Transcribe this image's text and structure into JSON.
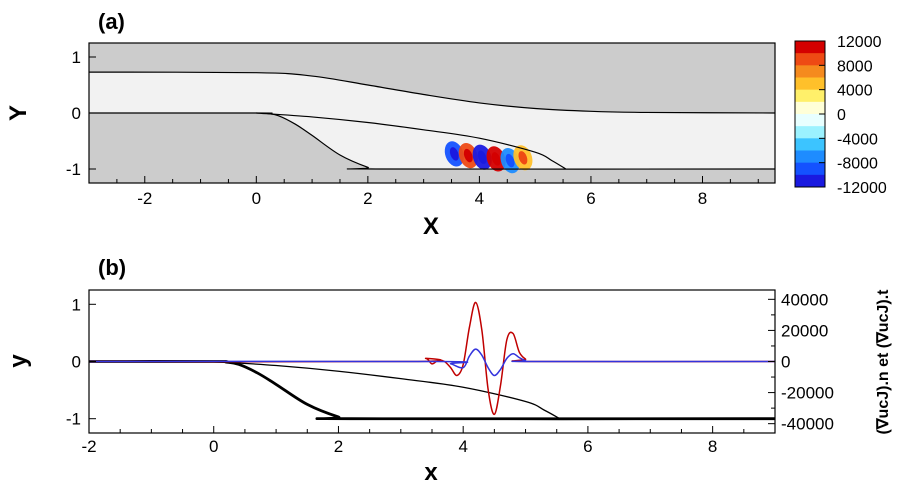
{
  "chart_data": [
    {
      "type": "heatmap",
      "panel_label": "(a)",
      "xlabel": "X",
      "ylabel": "Y",
      "xlim": [
        -3,
        9.3
      ],
      "ylim": [
        -1.25,
        1.25
      ],
      "xticks": [
        -2,
        0,
        2,
        4,
        6,
        8
      ],
      "yticks": [
        1,
        0,
        -1
      ],
      "colorbar": {
        "ticks": [
          12000,
          8000,
          4000,
          0,
          -4000,
          -8000,
          -12000
        ],
        "range": [
          -12000,
          12000
        ],
        "colors": [
          "#d40000",
          "#ee4a14",
          "#f58a1e",
          "#ffc02a",
          "#fff06a",
          "#ffffd8",
          "#e8ffff",
          "#9cf2ff",
          "#3cc4ff",
          "#1e8cff",
          "#1452ff",
          "#1a1ae0"
        ]
      },
      "upper_wall": [
        [
          -3,
          0.73
        ],
        [
          0,
          0.72
        ],
        [
          1,
          0.66
        ],
        [
          2,
          0.5
        ],
        [
          3,
          0.33
        ],
        [
          4,
          0.18
        ],
        [
          5,
          0.08
        ],
        [
          6,
          0.03
        ],
        [
          7,
          0.01
        ],
        [
          9.3,
          0.0
        ]
      ],
      "bump_wall": [
        [
          -3,
          0
        ],
        [
          0,
          0
        ],
        [
          0.2,
          -0.01
        ],
        [
          0.4,
          -0.05
        ],
        [
          0.7,
          -0.2
        ],
        [
          1,
          -0.4
        ],
        [
          1.5,
          -0.75
        ],
        [
          2,
          -0.97
        ],
        [
          2.2,
          -1.0
        ],
        [
          9.3,
          -1.0
        ]
      ],
      "shear_line": [
        [
          0,
          0
        ],
        [
          1,
          -0.07
        ],
        [
          2,
          -0.17
        ],
        [
          3,
          -0.3
        ],
        [
          4,
          -0.45
        ],
        [
          5,
          -0.7
        ],
        [
          5.3,
          -0.85
        ],
        [
          5.55,
          -1.0
        ]
      ],
      "blobs": [
        {
          "x": 3.55,
          "y": -0.73,
          "v": -9000
        },
        {
          "x": 3.8,
          "y": -0.76,
          "v": 10000
        },
        {
          "x": 4.05,
          "y": -0.79,
          "v": -12000
        },
        {
          "x": 4.3,
          "y": -0.82,
          "v": 11000
        },
        {
          "x": 4.55,
          "y": -0.85,
          "v": -6000
        },
        {
          "x": 4.78,
          "y": -0.8,
          "v": 6000
        }
      ]
    },
    {
      "type": "line",
      "panel_label": "(b)",
      "xlabel": "x",
      "ylabel": "y",
      "y2label": "(∇ucJ).n et (∇ucJ).t",
      "xlim": [
        -2,
        9
      ],
      "ylim": [
        -1.25,
        1.25
      ],
      "y2lim": [
        -46000,
        46000
      ],
      "xticks": [
        -2,
        0,
        2,
        4,
        6,
        8
      ],
      "yticks": [
        1,
        0,
        -1
      ],
      "y2ticks": [
        40000,
        20000,
        0,
        -20000,
        -40000
      ],
      "bump_wall": [
        [
          -2,
          0
        ],
        [
          0,
          0
        ],
        [
          0.2,
          -0.01
        ],
        [
          0.4,
          -0.05
        ],
        [
          0.7,
          -0.2
        ],
        [
          1,
          -0.4
        ],
        [
          1.5,
          -0.75
        ],
        [
          2,
          -0.97
        ],
        [
          2.2,
          -1.0
        ],
        [
          9,
          -1.0
        ]
      ],
      "shear_line": [
        [
          0,
          0
        ],
        [
          1,
          -0.07
        ],
        [
          2,
          -0.17
        ],
        [
          3,
          -0.3
        ],
        [
          4,
          -0.45
        ],
        [
          5,
          -0.7
        ],
        [
          5.3,
          -0.85
        ],
        [
          5.55,
          -1.0
        ]
      ],
      "series": [
        {
          "color": "#c00000",
          "x": [
            -2,
            3.2,
            3.4,
            3.5,
            3.6,
            3.7,
            3.8,
            3.9,
            4.0,
            4.1,
            4.2,
            4.3,
            4.4,
            4.5,
            4.6,
            4.7,
            4.8,
            4.9,
            5.0,
            5.1,
            9
          ],
          "y": [
            0,
            0,
            2000,
            -1500,
            800,
            0,
            -4000,
            -9000,
            -2000,
            22000,
            38000,
            20000,
            -18000,
            -34000,
            -15000,
            14000,
            18000,
            6000,
            1500,
            0,
            0
          ]
        },
        {
          "color": "#3333dd",
          "x": [
            -2,
            3.6,
            3.8,
            4.0,
            4.1,
            4.2,
            4.3,
            4.4,
            4.5,
            4.6,
            4.7,
            4.8,
            4.9,
            5.0,
            5.1,
            9
          ],
          "y": [
            0,
            0,
            -1500,
            -4000,
            3500,
            8000,
            4000,
            -4000,
            -9000,
            -5000,
            2000,
            5000,
            2500,
            500,
            0,
            0
          ]
        }
      ]
    }
  ]
}
